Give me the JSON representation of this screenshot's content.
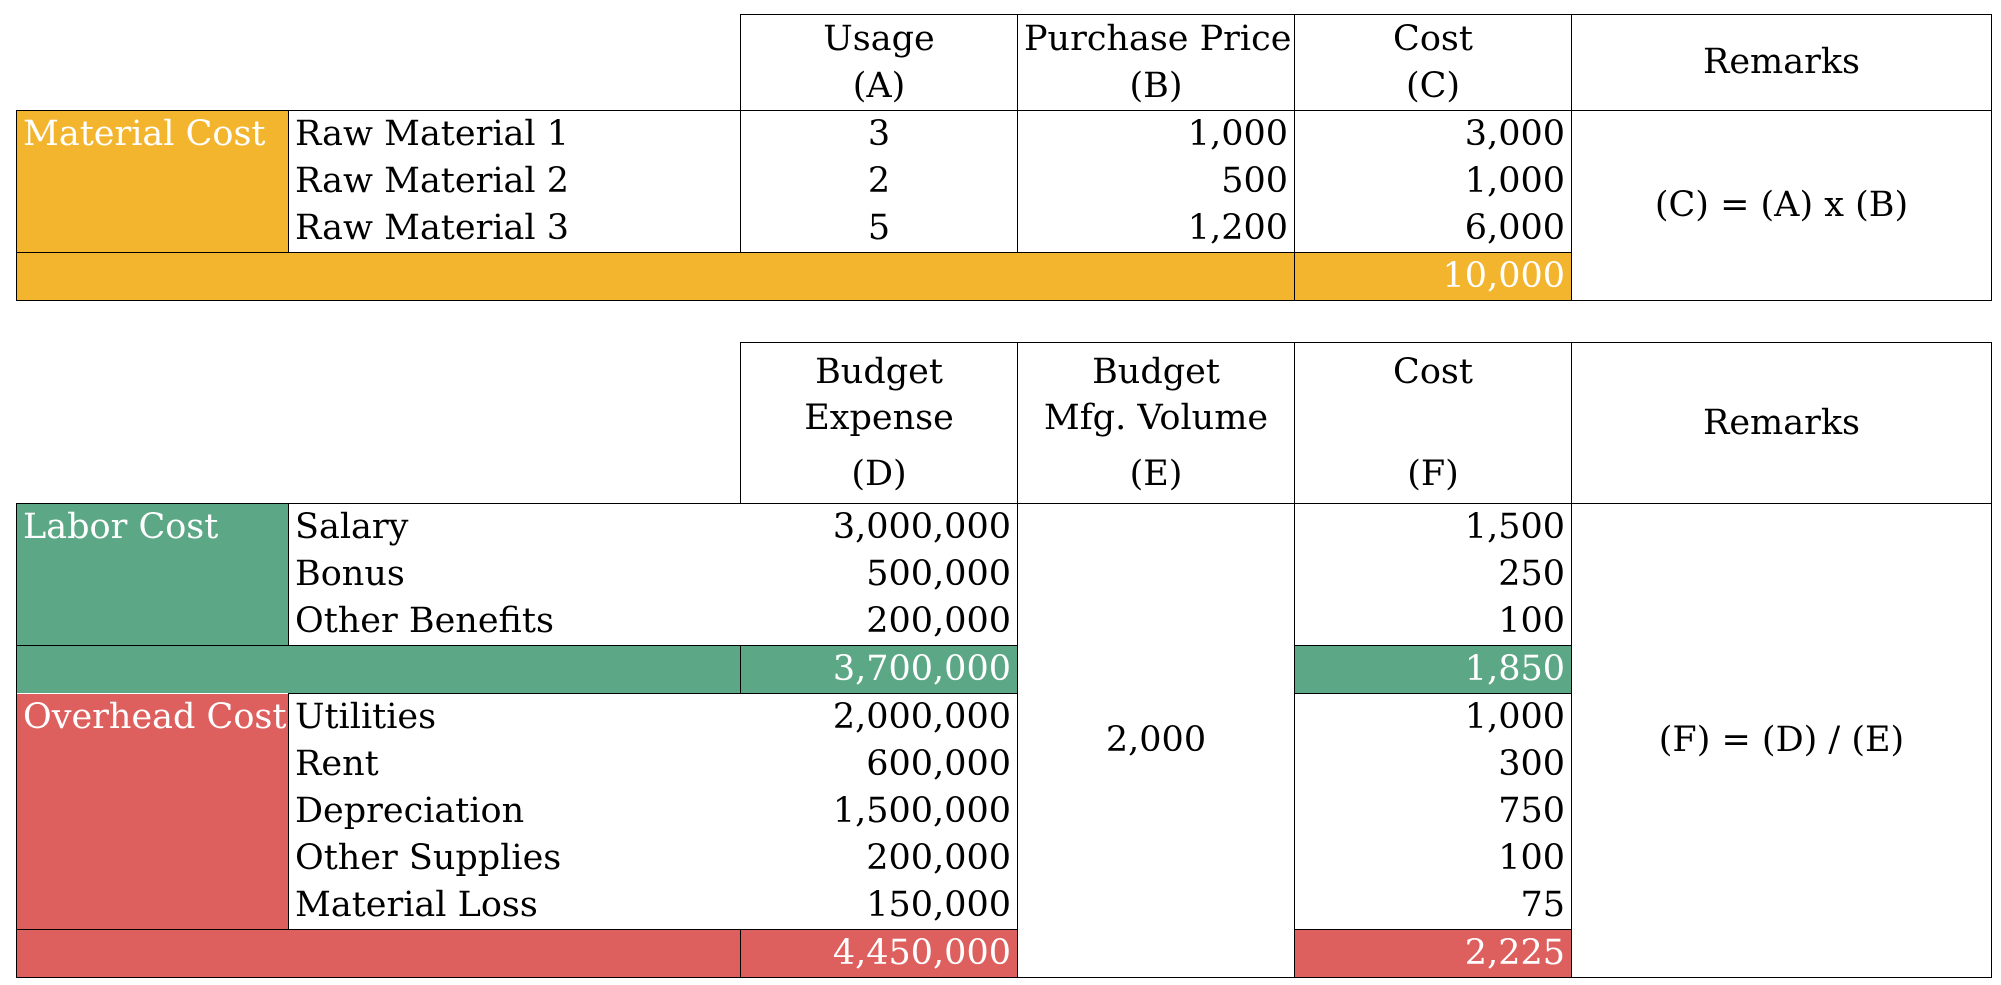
{
  "colors": {
    "material": "#F2B52D",
    "labor": "#5CA886",
    "overhead": "#DD605E"
  },
  "material_table": {
    "headers": [
      {
        "line1": "Usage",
        "line2": "(A)"
      },
      {
        "line1": "Purchase Price",
        "line2": "(B)"
      },
      {
        "line1": "Cost",
        "line2": "(C)"
      },
      {
        "line1": "Remarks"
      }
    ],
    "category": "Material Cost",
    "rows": [
      {
        "label": "Raw Material 1",
        "usage": "3",
        "price": "1,000",
        "cost": "3,000"
      },
      {
        "label": "Raw Material 2",
        "usage": "2",
        "price": "500",
        "cost": "1,000"
      },
      {
        "label": "Raw Material 3",
        "usage": "5",
        "price": "1,200",
        "cost": "6,000"
      }
    ],
    "total_cost": "10,000",
    "remark": "(C) = (A) x (B)"
  },
  "budget_table": {
    "headers": [
      {
        "line1": "Budget",
        "line2": "Expense",
        "line3": "(D)"
      },
      {
        "line1": "Budget",
        "line2": "Mfg. Volume",
        "line3": "(E)"
      },
      {
        "line1": "Cost",
        "line3": "(F)"
      },
      {
        "line1": "Remarks"
      }
    ],
    "labor": {
      "category": "Labor Cost",
      "rows": [
        {
          "label": "Salary",
          "expense": "3,000,000",
          "cost": "1,500"
        },
        {
          "label": "Bonus",
          "expense": "500,000",
          "cost": "250"
        },
        {
          "label": "Other Benefits",
          "expense": "200,000",
          "cost": "100"
        }
      ],
      "total_expense": "3,700,000",
      "total_cost": "1,850"
    },
    "overhead": {
      "category": "Overhead Cost",
      "rows": [
        {
          "label": "Utilities",
          "expense": "2,000,000",
          "cost": "1,000"
        },
        {
          "label": "Rent",
          "expense": "600,000",
          "cost": "300"
        },
        {
          "label": "Depreciation",
          "expense": "1,500,000",
          "cost": "750"
        },
        {
          "label": "Other Supplies",
          "expense": "200,000",
          "cost": "100"
        },
        {
          "label": "Material Loss",
          "expense": "150,000",
          "cost": "75"
        }
      ],
      "total_expense": "4,450,000",
      "total_cost": "2,225"
    },
    "volume": "2,000",
    "remark": "(F) = (D) / (E)"
  }
}
